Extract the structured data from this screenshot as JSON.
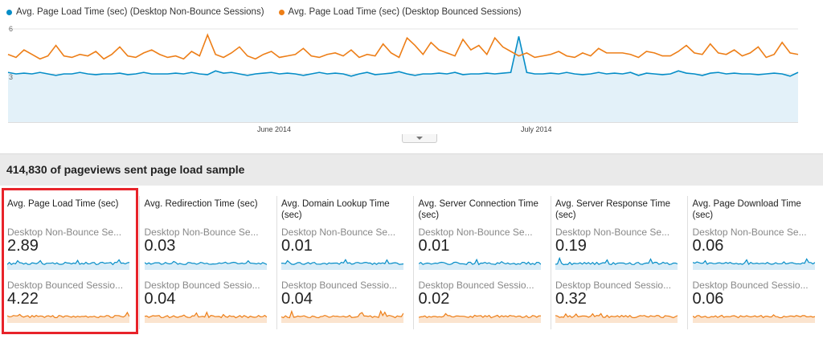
{
  "legend": {
    "series1": {
      "label": "Avg. Page Load Time (sec) (Desktop Non-Bounce Sessions)",
      "color": "#058dc7"
    },
    "series2": {
      "label": "Avg. Page Load Time (sec) (Desktop Bounced Sessions)",
      "color": "#ed7e17"
    }
  },
  "chart_data": {
    "type": "line",
    "y_ticks": [
      "6",
      "3"
    ],
    "x_ticks": [
      "June 2014",
      "July 2014"
    ],
    "ylim": [
      0,
      6
    ],
    "grid": true,
    "series": [
      {
        "name": "Avg. Page Load Time (sec) (Desktop Non-Bounce Sessions)",
        "color": "#058dc7",
        "values": [
          3.1,
          3.0,
          3.05,
          3.0,
          3.1,
          3.0,
          2.9,
          3.0,
          3.0,
          3.1,
          3.0,
          2.95,
          3.0,
          3.0,
          3.05,
          2.95,
          3.0,
          3.1,
          3.0,
          3.0,
          3.0,
          3.05,
          3.0,
          3.1,
          3.0,
          2.95,
          3.2,
          3.05,
          3.1,
          3.0,
          2.9,
          3.0,
          3.05,
          3.1,
          3.0,
          3.05,
          3.0,
          2.9,
          3.0,
          3.1,
          3.0,
          3.05,
          3.0,
          2.85,
          3.0,
          3.1,
          2.95,
          3.0,
          3.05,
          3.15,
          3.0,
          2.9,
          3.0,
          3.0,
          3.05,
          3.0,
          3.1,
          2.95,
          3.0,
          3.0,
          3.05,
          3.0,
          3.05,
          3.1,
          5.5,
          3.1,
          3.0,
          3.0,
          3.05,
          3.0,
          3.1,
          3.0,
          2.95,
          3.0,
          3.1,
          3.0,
          3.05,
          3.0,
          3.1,
          2.9,
          3.05,
          3.0,
          2.95,
          3.0,
          3.2,
          3.05,
          3.0,
          2.9,
          3.05,
          3.1,
          3.0,
          3.05,
          3.0,
          3.0,
          2.95,
          3.0,
          3.05,
          3.0,
          2.85,
          3.1
        ]
      },
      {
        "name": "Avg. Page Load Time (sec) (Desktop Bounced Sessions)",
        "color": "#ed7e17",
        "values": [
          4.3,
          4.1,
          4.6,
          4.3,
          4.0,
          4.2,
          4.9,
          4.2,
          4.1,
          4.3,
          4.2,
          4.5,
          4.0,
          4.3,
          4.8,
          4.2,
          4.1,
          4.4,
          4.6,
          4.3,
          4.1,
          4.2,
          4.0,
          4.5,
          4.2,
          5.6,
          4.3,
          4.1,
          4.4,
          4.8,
          4.2,
          4.0,
          4.3,
          4.5,
          4.1,
          4.2,
          4.3,
          4.7,
          4.2,
          4.1,
          4.3,
          4.4,
          4.2,
          4.6,
          4.1,
          4.3,
          4.2,
          5.0,
          4.4,
          4.1,
          5.4,
          4.9,
          4.3,
          5.1,
          4.6,
          4.4,
          4.2,
          5.3,
          4.6,
          4.9,
          4.3,
          5.4,
          4.8,
          4.5,
          4.2,
          4.4,
          4.1,
          4.2,
          4.3,
          4.5,
          4.2,
          4.1,
          4.4,
          4.2,
          4.7,
          4.4,
          4.4,
          4.4,
          4.3,
          4.1,
          4.5,
          4.4,
          4.2,
          4.2,
          4.5,
          4.9,
          4.4,
          4.3,
          5.0,
          4.4,
          4.3,
          4.6,
          4.2,
          4.4,
          4.8,
          4.1,
          4.3,
          5.1,
          4.4,
          4.3
        ]
      }
    ]
  },
  "sample_text": "414,830 of pageviews sent page load sample",
  "cards": [
    {
      "title": "Avg. Page Load Time (sec)",
      "sub1": "Desktop Non-Bounce Se...",
      "value1": "2.89",
      "sub2": "Desktop Bounced Sessio...",
      "value2": "4.22",
      "highlighted": true
    },
    {
      "title": "Avg. Redirection Time (sec)",
      "sub1": "Desktop Non-Bounce Se...",
      "value1": "0.03",
      "sub2": "Desktop Bounced Sessio...",
      "value2": "0.04"
    },
    {
      "title": "Avg. Domain Lookup Time (sec)",
      "sub1": "Desktop Non-Bounce Se...",
      "value1": "0.01",
      "sub2": "Desktop Bounced Sessio...",
      "value2": "0.04"
    },
    {
      "title": "Avg. Server Connection Time (sec)",
      "sub1": "Desktop Non-Bounce Se...",
      "value1": "0.01",
      "sub2": "Desktop Bounced Sessio...",
      "value2": "0.02"
    },
    {
      "title": "Avg. Server Response Time (sec)",
      "sub1": "Desktop Non-Bounce Se...",
      "value1": "0.19",
      "sub2": "Desktop Bounced Sessio...",
      "value2": "0.32"
    },
    {
      "title": "Avg. Page Download Time (sec)",
      "sub1": "Desktop Non-Bounce Se...",
      "value1": "0.06",
      "sub2": "Desktop Bounced Sessio...",
      "value2": "0.06"
    }
  ]
}
